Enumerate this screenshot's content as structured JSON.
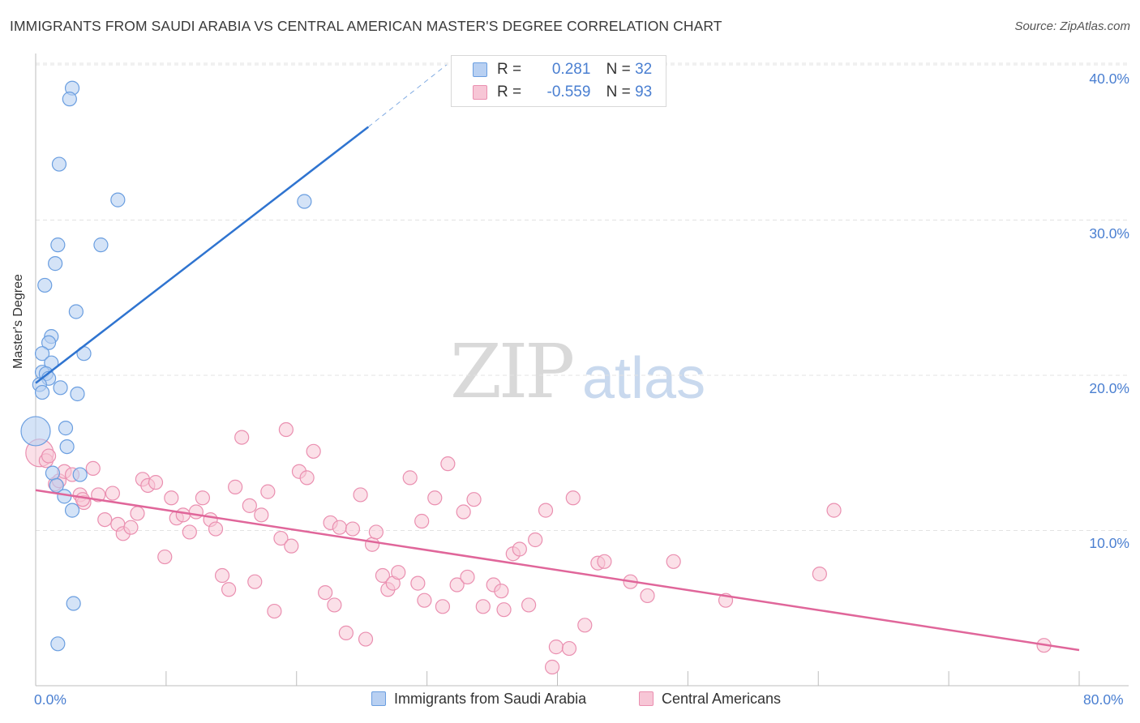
{
  "title": "IMMIGRANTS FROM SAUDI ARABIA VS CENTRAL AMERICAN MASTER'S DEGREE CORRELATION CHART",
  "source": "Source: ZipAtlas.com",
  "watermark": {
    "zip": "ZIP",
    "atlas": "atlas"
  },
  "legend_top": {
    "rows": [
      {
        "r_label": "R =",
        "r_value": "0.281",
        "n_label": "N =",
        "n_value": "32"
      },
      {
        "r_label": "R =",
        "r_value": "-0.559",
        "n_label": "N =",
        "n_value": "93"
      }
    ]
  },
  "legend_bottom": {
    "series1": "Immigrants from Saudi Arabia",
    "series2": "Central Americans"
  },
  "colors": {
    "blue_fill": "#b8d0f2",
    "blue_stroke": "#6a9ee0",
    "blue_line": "#2f74d0",
    "pink_fill": "#f7c6d6",
    "pink_stroke": "#ea8fb0",
    "pink_line": "#e0669a",
    "grid": "#e3e3e3",
    "tick_text": "#4a7fd1"
  },
  "chart_data": {
    "type": "scatter",
    "title": "IMMIGRANTS FROM SAUDI ARABIA VS CENTRAL AMERICAN MASTER'S DEGREE CORRELATION CHART",
    "xlabel": "",
    "ylabel": "Master's Degree",
    "xlim": [
      0,
      80
    ],
    "ylim": [
      0,
      41
    ],
    "x_tick_labels": [
      "0.0%",
      "80.0%"
    ],
    "y_ticks": [
      10,
      20,
      30,
      40
    ],
    "y_tick_labels": [
      "10.0%",
      "20.0%",
      "30.0%",
      "40.0%"
    ],
    "grid": true,
    "series": [
      {
        "name": "Immigrants from Saudi Arabia",
        "r": 0.281,
        "n": 32,
        "points": [
          [
            2.8,
            38.5
          ],
          [
            2.6,
            37.8
          ],
          [
            1.8,
            33.6
          ],
          [
            6.3,
            31.3
          ],
          [
            20.6,
            31.2
          ],
          [
            1.7,
            28.4
          ],
          [
            5.0,
            28.4
          ],
          [
            1.5,
            27.2
          ],
          [
            0.7,
            25.8
          ],
          [
            3.1,
            24.1
          ],
          [
            1.2,
            22.5
          ],
          [
            1.0,
            22.1
          ],
          [
            0.5,
            21.4
          ],
          [
            3.7,
            21.4
          ],
          [
            1.2,
            20.8
          ],
          [
            0.5,
            20.2
          ],
          [
            0.8,
            20.1
          ],
          [
            1.0,
            19.8
          ],
          [
            0.3,
            19.4
          ],
          [
            1.9,
            19.2
          ],
          [
            0.5,
            18.9
          ],
          [
            3.2,
            18.8
          ],
          [
            0.0,
            16.4
          ],
          [
            2.3,
            16.6
          ],
          [
            2.4,
            15.4
          ],
          [
            1.3,
            13.7
          ],
          [
            3.4,
            13.6
          ],
          [
            1.6,
            12.9
          ],
          [
            2.2,
            12.2
          ],
          [
            2.8,
            11.3
          ],
          [
            2.9,
            5.3
          ],
          [
            1.7,
            2.7
          ]
        ],
        "trend": {
          "x": [
            0,
            25.5
          ],
          "y": [
            19.5,
            36.0
          ],
          "dashed_to": [
            31.5,
            40.0
          ]
        }
      },
      {
        "name": "Central Americans",
        "r": -0.559,
        "n": 93,
        "points": [
          [
            0.3,
            15.0
          ],
          [
            0.8,
            14.5
          ],
          [
            1.5,
            13.0
          ],
          [
            1.8,
            13.2
          ],
          [
            2.2,
            13.8
          ],
          [
            2.8,
            13.6
          ],
          [
            3.4,
            12.3
          ],
          [
            3.7,
            11.8
          ],
          [
            4.4,
            14.0
          ],
          [
            4.8,
            12.3
          ],
          [
            5.3,
            10.7
          ],
          [
            5.9,
            12.4
          ],
          [
            6.3,
            10.4
          ],
          [
            6.7,
            9.8
          ],
          [
            7.3,
            10.2
          ],
          [
            7.8,
            11.1
          ],
          [
            8.2,
            13.3
          ],
          [
            8.6,
            12.9
          ],
          [
            9.2,
            13.1
          ],
          [
            9.9,
            8.3
          ],
          [
            10.4,
            12.1
          ],
          [
            10.8,
            10.8
          ],
          [
            11.3,
            11.0
          ],
          [
            11.8,
            9.9
          ],
          [
            12.3,
            11.2
          ],
          [
            12.8,
            12.1
          ],
          [
            13.4,
            10.7
          ],
          [
            13.8,
            10.1
          ],
          [
            14.3,
            7.1
          ],
          [
            14.8,
            6.2
          ],
          [
            15.3,
            12.8
          ],
          [
            15.8,
            16.0
          ],
          [
            16.4,
            11.6
          ],
          [
            16.8,
            6.7
          ],
          [
            17.3,
            11.0
          ],
          [
            17.8,
            12.5
          ],
          [
            18.3,
            4.8
          ],
          [
            18.8,
            9.5
          ],
          [
            19.2,
            16.5
          ],
          [
            19.6,
            9.0
          ],
          [
            20.2,
            13.8
          ],
          [
            20.8,
            13.4
          ],
          [
            21.3,
            15.1
          ],
          [
            22.2,
            6.0
          ],
          [
            22.6,
            10.5
          ],
          [
            22.9,
            5.2
          ],
          [
            23.3,
            10.2
          ],
          [
            23.8,
            3.4
          ],
          [
            24.3,
            10.1
          ],
          [
            24.9,
            12.3
          ],
          [
            25.3,
            3.0
          ],
          [
            25.8,
            9.1
          ],
          [
            26.1,
            9.9
          ],
          [
            26.6,
            7.1
          ],
          [
            27.0,
            6.2
          ],
          [
            27.4,
            6.6
          ],
          [
            27.8,
            7.3
          ],
          [
            28.7,
            13.4
          ],
          [
            29.3,
            6.6
          ],
          [
            29.6,
            10.6
          ],
          [
            29.8,
            5.5
          ],
          [
            30.6,
            12.1
          ],
          [
            31.2,
            5.1
          ],
          [
            31.6,
            14.3
          ],
          [
            32.3,
            6.5
          ],
          [
            32.8,
            11.2
          ],
          [
            33.1,
            7.0
          ],
          [
            33.6,
            12.0
          ],
          [
            34.3,
            5.1
          ],
          [
            35.1,
            6.5
          ],
          [
            35.7,
            6.1
          ],
          [
            35.9,
            4.9
          ],
          [
            36.6,
            8.5
          ],
          [
            37.1,
            8.8
          ],
          [
            37.8,
            5.2
          ],
          [
            38.3,
            9.4
          ],
          [
            39.1,
            11.3
          ],
          [
            39.6,
            1.2
          ],
          [
            39.9,
            2.5
          ],
          [
            40.9,
            2.4
          ],
          [
            41.2,
            12.1
          ],
          [
            42.1,
            3.9
          ],
          [
            43.1,
            7.9
          ],
          [
            43.6,
            8.0
          ],
          [
            45.6,
            6.7
          ],
          [
            46.9,
            5.8
          ],
          [
            48.9,
            8.0
          ],
          [
            52.9,
            5.5
          ],
          [
            60.1,
            7.2
          ],
          [
            61.2,
            11.3
          ],
          [
            77.3,
            2.6
          ],
          [
            1.0,
            14.8
          ],
          [
            3.6,
            12.0
          ]
        ],
        "trend": {
          "x": [
            0,
            80
          ],
          "y": [
            12.6,
            2.3
          ]
        }
      }
    ]
  }
}
